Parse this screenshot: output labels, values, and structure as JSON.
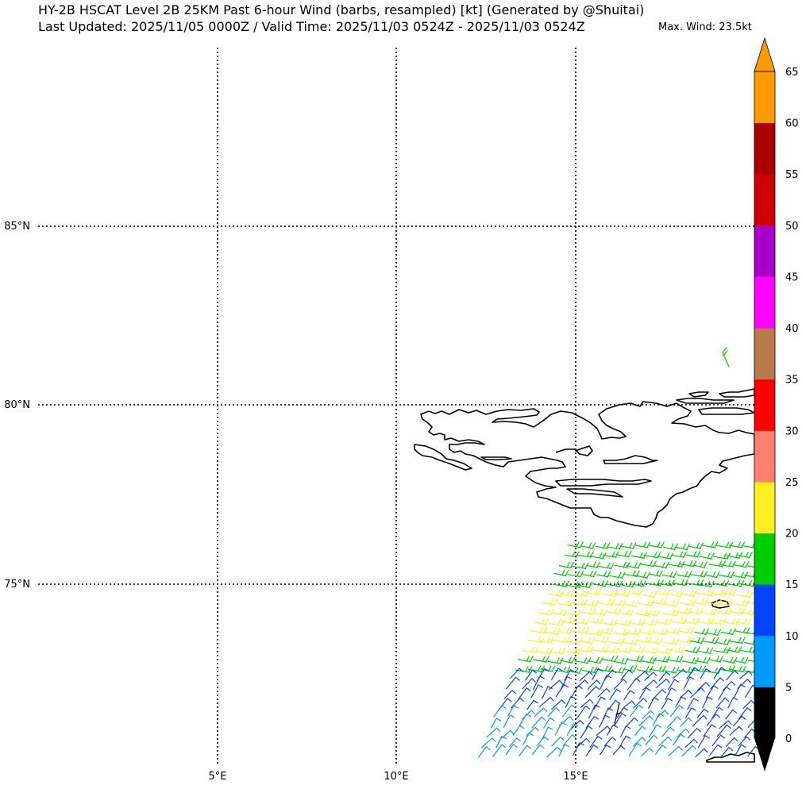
{
  "title_line1": "HY-2B HSCAT Level 2B 25KM Past 6-hour Wind (barbs, resampled) [kt] (Generated by @Shuitai)",
  "title_line2": "Last Updated: 2025/11/05 0000Z / Valid Time: 2025/11/03 0524Z - 2025/11/03 0524Z",
  "max_wind": "Max. Wind: 23.5kt",
  "lat_labels": [
    "85°N",
    "80°N",
    "75°N"
  ],
  "lon_labels": [
    "5°E",
    "10°E",
    "15°E"
  ],
  "colorbar": {
    "ticks": [
      "0",
      "5",
      "10",
      "15",
      "20",
      "25",
      "30",
      "35",
      "40",
      "45",
      "50",
      "55",
      "60",
      "65"
    ],
    "colors": [
      "#000000",
      "#0099ff",
      "#0044ff",
      "#00cc00",
      "#ffee22",
      "#ff7f6e",
      "#ff0000",
      "#b87a4b",
      "#ff00ff",
      "#aa00cc",
      "#cc0000",
      "#aa0000",
      "#ff9900"
    ],
    "under_color": "#000000",
    "over_color": "#ff9900"
  },
  "barb_colors": {
    "5-10": "#0099ff",
    "10-15": "#0044ff",
    "15-20": "#00cc00",
    "20-25": "#ffee22"
  }
}
